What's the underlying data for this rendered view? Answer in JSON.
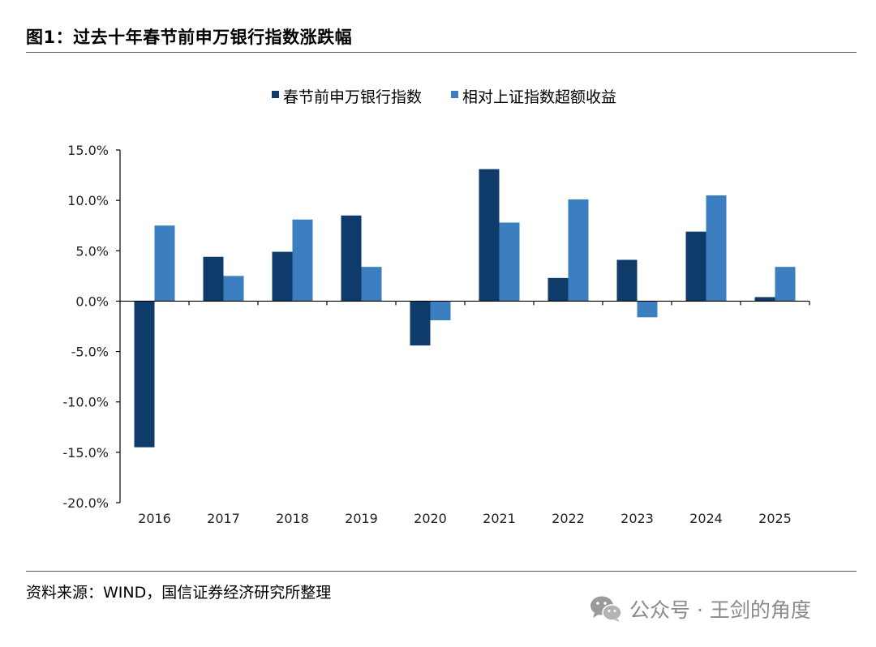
{
  "figure_title": "图1：过去十年春节前申万银行指数涨跌幅",
  "source_text": "资料来源：WIND，国信证券经济研究所整理",
  "watermark": {
    "text": "公众号 · 王剑的角度",
    "icon": "wechat-icon"
  },
  "colors": {
    "series_dark": "#0f3b6b",
    "series_light": "#3c7fc0",
    "axis": "#000000"
  },
  "chart_data": {
    "type": "bar",
    "title": "图1：过去十年春节前申万银行指数涨跌幅",
    "xlabel": "",
    "ylabel": "",
    "categories": [
      "2016",
      "2017",
      "2018",
      "2019",
      "2020",
      "2021",
      "2022",
      "2023",
      "2024",
      "2025"
    ],
    "series": [
      {
        "name": "春节前申万银行指数",
        "color": "#0f3b6b",
        "values": [
          -14.5,
          4.4,
          4.9,
          8.5,
          -4.4,
          13.1,
          2.3,
          4.1,
          6.9,
          0.4
        ]
      },
      {
        "name": "相对上证指数超额收益",
        "color": "#3c7fc0",
        "values": [
          7.5,
          2.5,
          8.1,
          3.4,
          -1.9,
          7.8,
          10.1,
          -1.6,
          10.5,
          3.4
        ]
      }
    ],
    "ylim": [
      -20,
      15
    ],
    "yticks": [
      15,
      10,
      5,
      0,
      -5,
      -10,
      -15,
      -20
    ],
    "ytick_labels": [
      "15.0%",
      "10.0%",
      "5.0%",
      "0.0%",
      "-5.0%",
      "-10.0%",
      "-15.0%",
      "-20.0%"
    ],
    "legend_position": "top-center",
    "grid": false
  }
}
